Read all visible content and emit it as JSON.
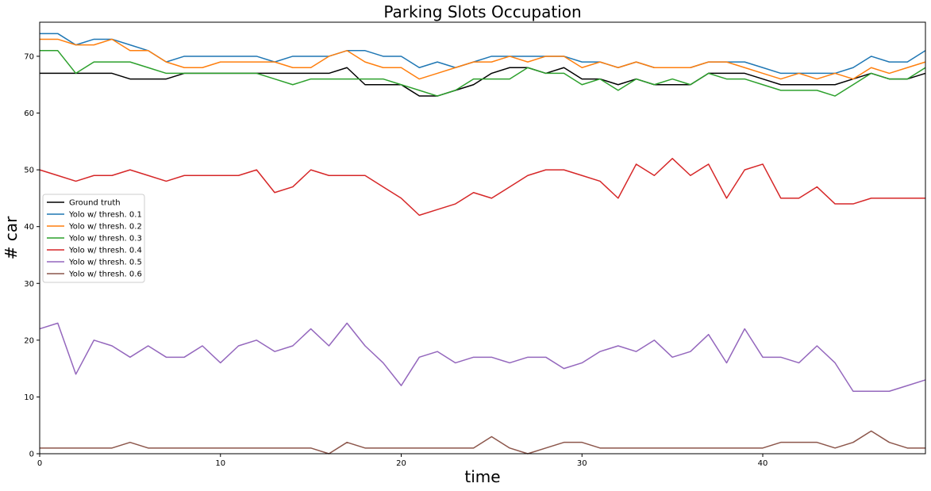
{
  "chart_data": {
    "type": "line",
    "title": "Parking Slots Occupation",
    "xlabel": "time",
    "ylabel": "# car",
    "xlim": [
      0,
      49
    ],
    "ylim": [
      0,
      76
    ],
    "xticks": [
      0,
      10,
      20,
      30,
      40
    ],
    "yticks": [
      0,
      10,
      20,
      30,
      40,
      50,
      60,
      70
    ],
    "grid": false,
    "legend_position": "center-left",
    "x": [
      0,
      1,
      2,
      3,
      4,
      5,
      6,
      7,
      8,
      9,
      10,
      11,
      12,
      13,
      14,
      15,
      16,
      17,
      18,
      19,
      20,
      21,
      22,
      23,
      24,
      25,
      26,
      27,
      28,
      29,
      30,
      31,
      32,
      33,
      34,
      35,
      36,
      37,
      38,
      39,
      40,
      41,
      42,
      43,
      44,
      45,
      46,
      47,
      48,
      49
    ],
    "series": [
      {
        "name": "Ground truth",
        "color": "#000000",
        "values": [
          67,
          67,
          67,
          67,
          67,
          66,
          66,
          66,
          67,
          67,
          67,
          67,
          67,
          67,
          67,
          67,
          67,
          68,
          65,
          65,
          65,
          63,
          63,
          64,
          65,
          67,
          68,
          68,
          67,
          68,
          66,
          66,
          65,
          66,
          65,
          65,
          65,
          67,
          67,
          67,
          66,
          65,
          65,
          65,
          65,
          66,
          67,
          66,
          66,
          67
        ]
      },
      {
        "name": "Yolo w/ thresh. 0.1",
        "color": "#1f77b4",
        "values": [
          74,
          74,
          72,
          73,
          73,
          72,
          71,
          69,
          70,
          70,
          70,
          70,
          70,
          69,
          70,
          70,
          70,
          71,
          71,
          70,
          70,
          68,
          69,
          68,
          69,
          70,
          70,
          70,
          70,
          70,
          69,
          69,
          68,
          69,
          68,
          68,
          68,
          69,
          69,
          69,
          68,
          67,
          67,
          67,
          67,
          68,
          70,
          69,
          69,
          71
        ]
      },
      {
        "name": "Yolo w/ thresh. 0.2",
        "color": "#ff7f0e",
        "values": [
          73,
          73,
          72,
          72,
          73,
          71,
          71,
          69,
          68,
          68,
          69,
          69,
          69,
          69,
          68,
          68,
          70,
          71,
          69,
          68,
          68,
          66,
          67,
          68,
          69,
          69,
          70,
          69,
          70,
          70,
          68,
          69,
          68,
          69,
          68,
          68,
          68,
          69,
          69,
          68,
          67,
          66,
          67,
          66,
          67,
          66,
          68,
          67,
          68,
          69
        ]
      },
      {
        "name": "Yolo w/ thresh. 0.3",
        "color": "#2ca02c",
        "values": [
          71,
          71,
          67,
          69,
          69,
          69,
          68,
          67,
          67,
          67,
          67,
          67,
          67,
          66,
          65,
          66,
          66,
          66,
          66,
          66,
          65,
          64,
          63,
          64,
          66,
          66,
          66,
          68,
          67,
          67,
          65,
          66,
          64,
          66,
          65,
          66,
          65,
          67,
          66,
          66,
          65,
          64,
          64,
          64,
          63,
          65,
          67,
          66,
          66,
          68
        ]
      },
      {
        "name": "Yolo w/ thresh. 0.4",
        "color": "#d62728",
        "values": [
          50,
          49,
          48,
          49,
          49,
          50,
          49,
          48,
          49,
          49,
          49,
          49,
          50,
          46,
          47,
          50,
          49,
          49,
          49,
          47,
          45,
          42,
          43,
          44,
          46,
          45,
          47,
          49,
          50,
          50,
          49,
          48,
          45,
          51,
          49,
          52,
          49,
          51,
          45,
          50,
          51,
          45,
          45,
          47,
          44,
          44,
          45,
          45,
          45,
          45
        ]
      },
      {
        "name": "Yolo w/ thresh. 0.5",
        "color": "#9467bd",
        "values": [
          22,
          23,
          14,
          20,
          19,
          17,
          19,
          17,
          17,
          19,
          16,
          19,
          20,
          18,
          19,
          22,
          19,
          23,
          19,
          16,
          12,
          17,
          18,
          16,
          17,
          17,
          16,
          17,
          17,
          15,
          16,
          18,
          19,
          18,
          20,
          17,
          18,
          21,
          16,
          22,
          17,
          17,
          16,
          19,
          16,
          11,
          11,
          11,
          12,
          13
        ]
      },
      {
        "name": "Yolo w/ thresh. 0.6",
        "color": "#8c564b",
        "values": [
          1,
          1,
          1,
          1,
          1,
          2,
          1,
          1,
          1,
          1,
          1,
          1,
          1,
          1,
          1,
          1,
          0,
          2,
          1,
          1,
          1,
          1,
          1,
          1,
          1,
          3,
          1,
          0,
          1,
          2,
          2,
          1,
          1,
          1,
          1,
          1,
          1,
          1,
          1,
          1,
          1,
          2,
          2,
          2,
          1,
          2,
          4,
          2,
          1,
          1
        ]
      }
    ]
  }
}
